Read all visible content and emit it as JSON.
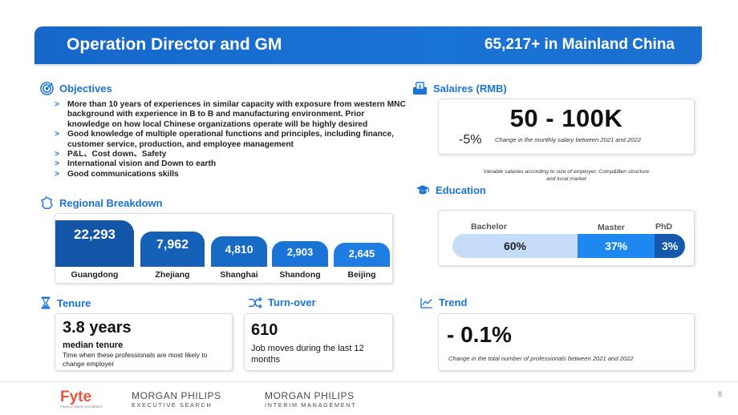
{
  "header": {
    "title": "Operation Director and GM",
    "subtitle": "65,217+ in Mainland China"
  },
  "objectives": {
    "title": "Objectives",
    "items": [
      "More than 10 years of experiences in similar capacity with exposure from western MNC background with experience in B to B and manufacturing environment. Prior knowledge on how local Chinese organizations operate will be highly desired",
      "Good knowledge of multiple operational functions and principles, including finance, customer service, production, and employee management",
      "P&L、Cost down、Safety",
      "International vision and Down to earth",
      "Good communications skills"
    ]
  },
  "regional": {
    "title": "Regional Breakdown",
    "regions": [
      {
        "name": "Guangdong",
        "value": "22,293",
        "color": "#1355a6"
      },
      {
        "name": "Zhejiang",
        "value": "7,962",
        "color": "#1561b8"
      },
      {
        "name": "Shanghai",
        "value": "4,810",
        "color": "#176ac6"
      },
      {
        "name": "Shandong",
        "value": "2,903",
        "color": "#1a73d6"
      },
      {
        "name": "Beijing",
        "value": "2,645",
        "color": "#1e7ce2"
      }
    ]
  },
  "salary": {
    "title": "Salaires (RMB)",
    "range": "50 - 100K",
    "change": "-5%",
    "change_note": "Change in the monthly salary between 2021 and 2022",
    "variable_note_1": "Variable salaries according to size of employer, Comp&Ben structure",
    "variable_note_2": "and local market"
  },
  "education": {
    "title": "Education",
    "levels": [
      {
        "label": "Bachelor",
        "value": "60%",
        "share": 60,
        "color": "#c6ddf9",
        "text_color": "#222222"
      },
      {
        "label": "Master",
        "value": "37%",
        "share": 37,
        "color": "#1e88f0",
        "text_color": "#ffffff"
      },
      {
        "label": "PhD",
        "value": "3%",
        "share": 3,
        "color": "#1558ae",
        "text_color": "#ffffff"
      }
    ]
  },
  "tenure": {
    "title": "Tenure",
    "value": "3.8 years",
    "label": "median tenure",
    "note": "Time when these professionals are most likely to change employer"
  },
  "turnover": {
    "title": "Turn-over",
    "value": "610",
    "note": "Job moves during the last 12 months"
  },
  "trend": {
    "title": "Trend",
    "value": "- 0.1%",
    "note": "Change in the total number of professionals between 2021 and 2022"
  },
  "footer": {
    "logo1": "Fyte",
    "logo1_sub": "Finance talent recruitment",
    "logo2_brand": "MORGAN PHILIPS",
    "logo2_sub": "EXECUTIVE SEARCH",
    "logo3_brand": "MORGAN PHILIPS",
    "logo3_sub": "INTERIM MANAGEMENT",
    "page": "8"
  },
  "colors": {
    "accent": "#1a73d6",
    "fyte": "#e8573b"
  },
  "icons": [
    "target-icon",
    "france-map-icon",
    "money-icon",
    "graduation-cap-icon",
    "hourglass-icon",
    "shuffle-icon",
    "trend-chart-icon"
  ]
}
